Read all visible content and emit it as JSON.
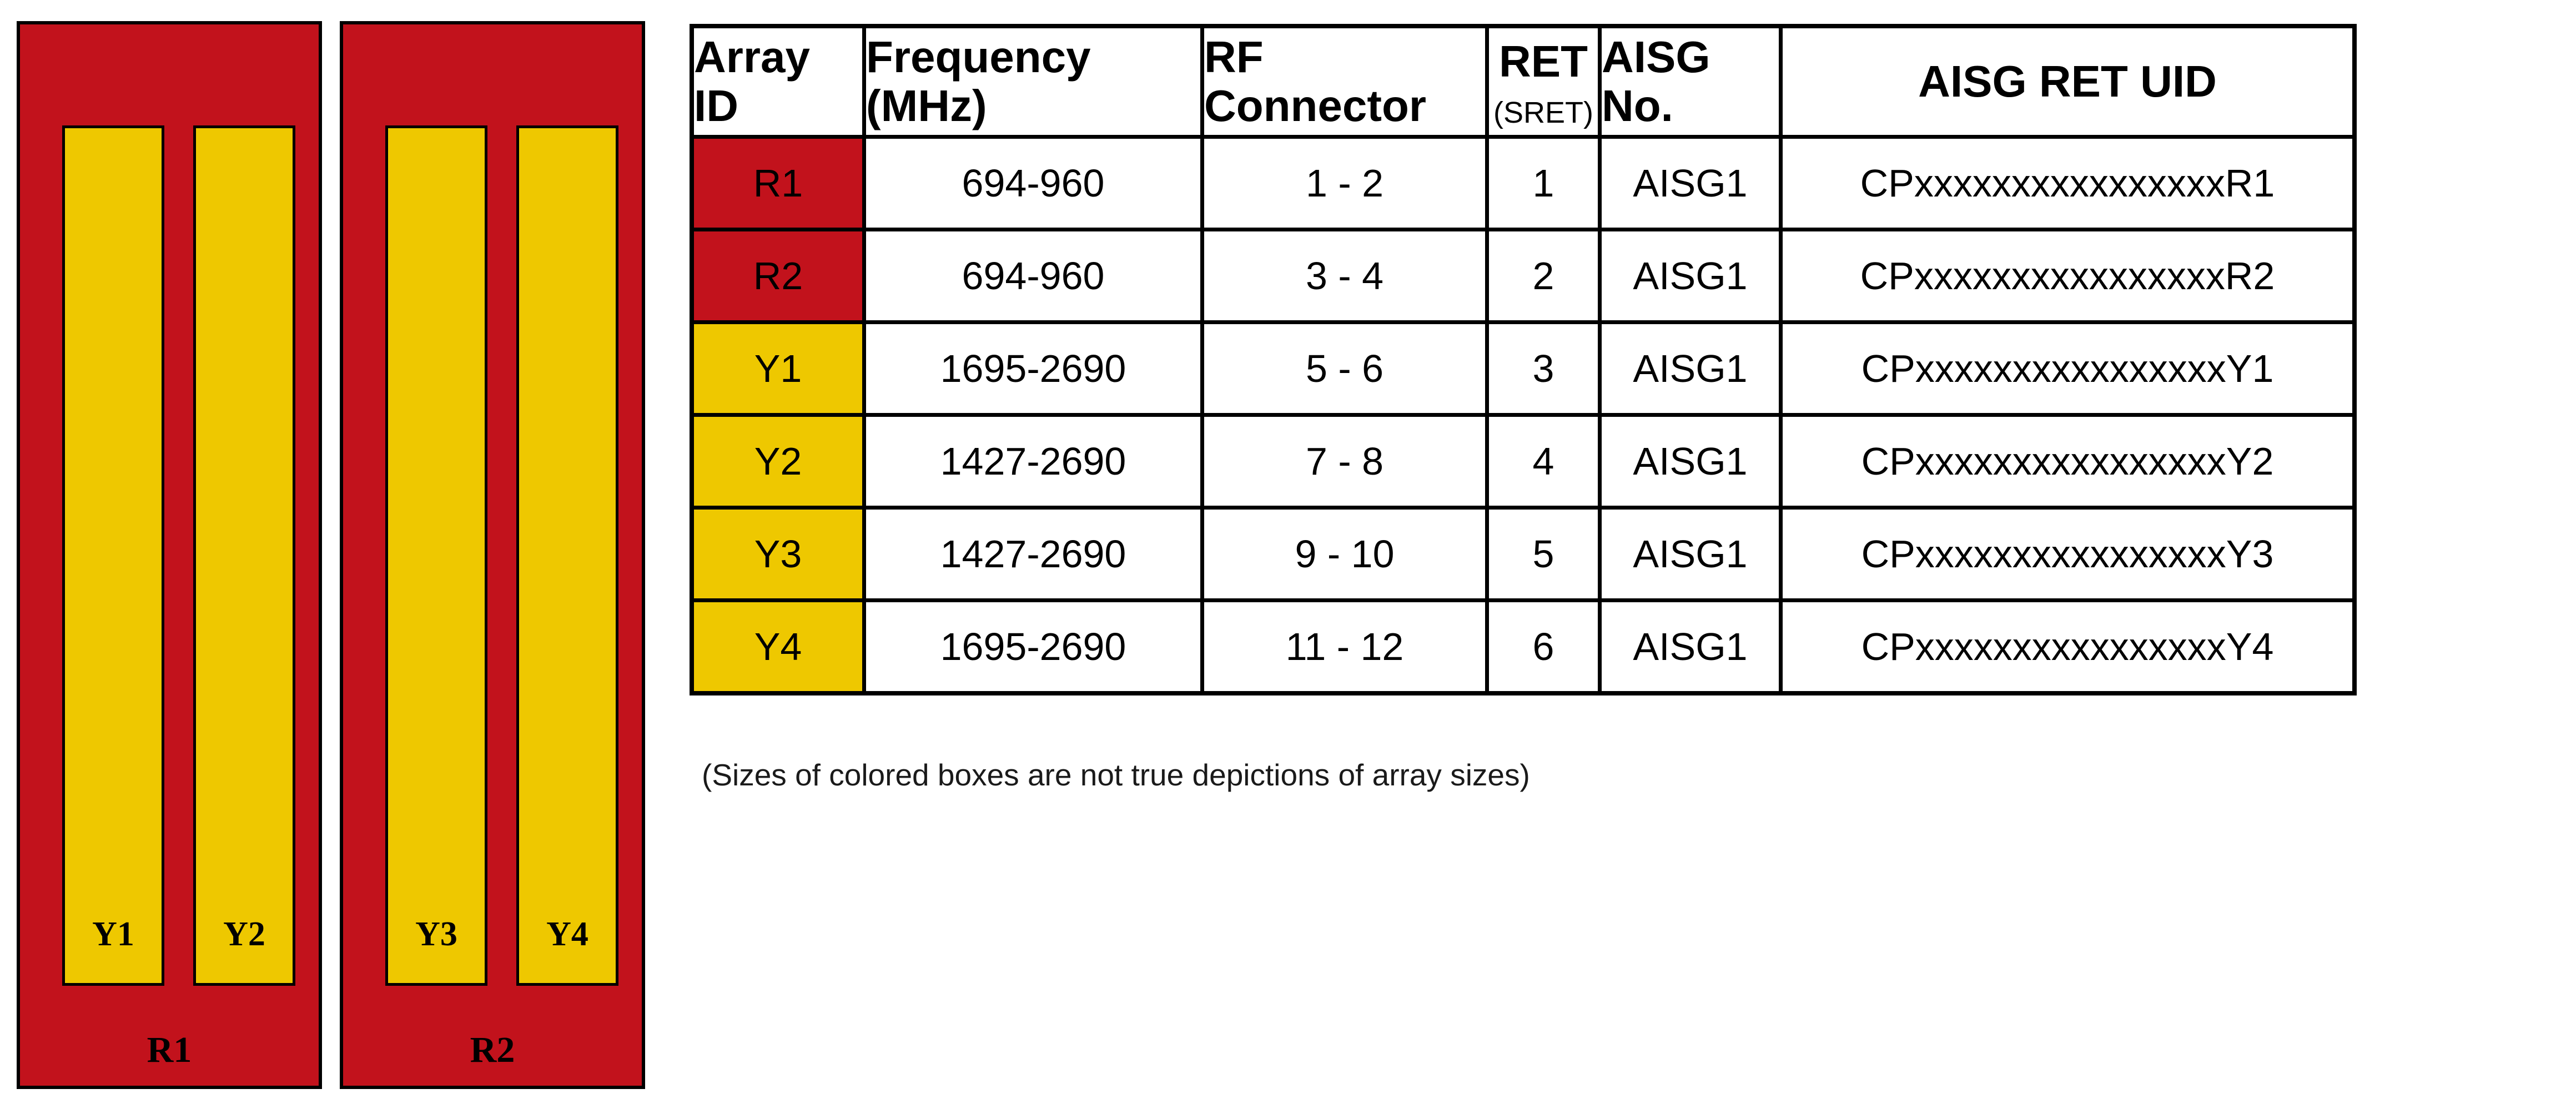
{
  "diagram": {
    "panels": [
      {
        "label": "R1",
        "arrays": [
          {
            "label": "Y1"
          },
          {
            "label": "Y2"
          }
        ]
      },
      {
        "label": "R2",
        "arrays": [
          {
            "label": "Y3"
          },
          {
            "label": "Y4"
          }
        ]
      }
    ]
  },
  "table": {
    "columns": [
      "Array ID",
      "Frequency (MHz)",
      "RF Connector",
      "RET",
      "AISG No.",
      "AISG RET UID"
    ],
    "ret_subheader": "(SRET)",
    "rows": [
      {
        "array_id": "R1",
        "color": "red",
        "frequency": "694-960",
        "rf_connector": "1 - 2",
        "ret": "1",
        "aisg_no": "AISG1",
        "aisg_ret_uid": "CPxxxxxxxxxxxxxxxxR1"
      },
      {
        "array_id": "R2",
        "color": "red",
        "frequency": "694-960",
        "rf_connector": "3 - 4",
        "ret": "2",
        "aisg_no": "AISG1",
        "aisg_ret_uid": "CPxxxxxxxxxxxxxxxxR2"
      },
      {
        "array_id": "Y1",
        "color": "yellow",
        "frequency": "1695-2690",
        "rf_connector": "5 - 6",
        "ret": "3",
        "aisg_no": "AISG1",
        "aisg_ret_uid": "CPxxxxxxxxxxxxxxxxY1"
      },
      {
        "array_id": "Y2",
        "color": "yellow",
        "frequency": "1427-2690",
        "rf_connector": "7 - 8",
        "ret": "4",
        "aisg_no": "AISG1",
        "aisg_ret_uid": "CPxxxxxxxxxxxxxxxxY2"
      },
      {
        "array_id": "Y3",
        "color": "yellow",
        "frequency": "1427-2690",
        "rf_connector": "9 - 10",
        "ret": "5",
        "aisg_no": "AISG1",
        "aisg_ret_uid": "CPxxxxxxxxxxxxxxxxY3"
      },
      {
        "array_id": "Y4",
        "color": "yellow",
        "frequency": "1695-2690",
        "rf_connector": "11 - 12",
        "ret": "6",
        "aisg_no": "AISG1",
        "aisg_ret_uid": "CPxxxxxxxxxxxxxxxxY4"
      }
    ]
  },
  "note": "(Sizes of colored boxes are not true depictions of array sizes)",
  "colors": {
    "panel_red": "#C2121C",
    "array_yellow": "#EEC800",
    "border_black": "#000000"
  }
}
